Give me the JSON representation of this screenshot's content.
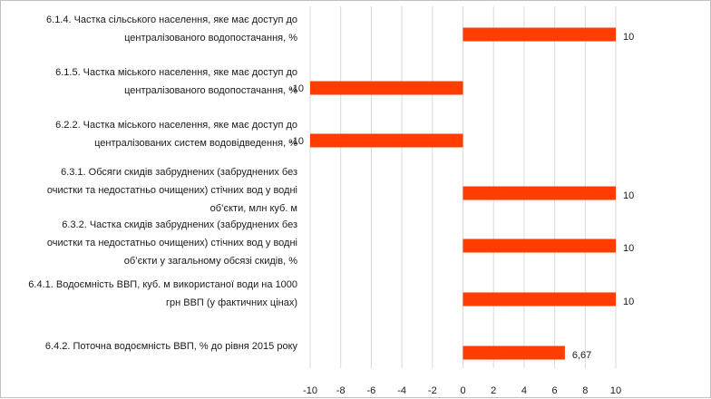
{
  "chart_data": {
    "type": "bar",
    "orientation": "horizontal",
    "categories": [
      [
        "6.1.4. Частка сільського населення, яке має доступ до",
        "централізованого водопостачання, %"
      ],
      [
        "6.1.5. Частка міського населення, яке має доступ до",
        "централізованого водопостачання, %"
      ],
      [
        "6.2.2. Частка міського населення, яке має доступ до",
        "централізованих систем водовідведення, %"
      ],
      [
        "6.3.1. Обсяги скидів забруднених (забруднених без",
        "очистки та недостатньо очищених) стічних вод у водні",
        "об’єкти, млн куб. м"
      ],
      [
        "6.3.2. Частка скидів забруднених (забруднених без",
        "очистки та недостатньо очищених) стічних вод у водні",
        "об’єкти у загальному обсязі скидів, %"
      ],
      [
        "6.4.1. Водоємність ВВП, куб. м використаної води на 1000",
        "грн ВВП (у фактичних цінах)"
      ],
      [
        "6.4.2. Поточна водоємність ВВП, % до рівня 2015 року"
      ]
    ],
    "values": [
      10,
      -10,
      -10,
      10,
      10,
      10,
      6.67
    ],
    "data_labels": [
      "10",
      "-10",
      "-10",
      "10",
      "10",
      "10",
      "6,67"
    ],
    "xlim": [
      -10,
      10
    ],
    "x_ticks": [
      "-10",
      "-8",
      "-6",
      "-4",
      "-2",
      "0",
      "2",
      "4",
      "6",
      "8",
      "10"
    ],
    "grid": true,
    "bar_color": "#ff3d00",
    "grid_color": "#d9d9d9",
    "title": "",
    "xlabel": "",
    "ylabel": ""
  }
}
